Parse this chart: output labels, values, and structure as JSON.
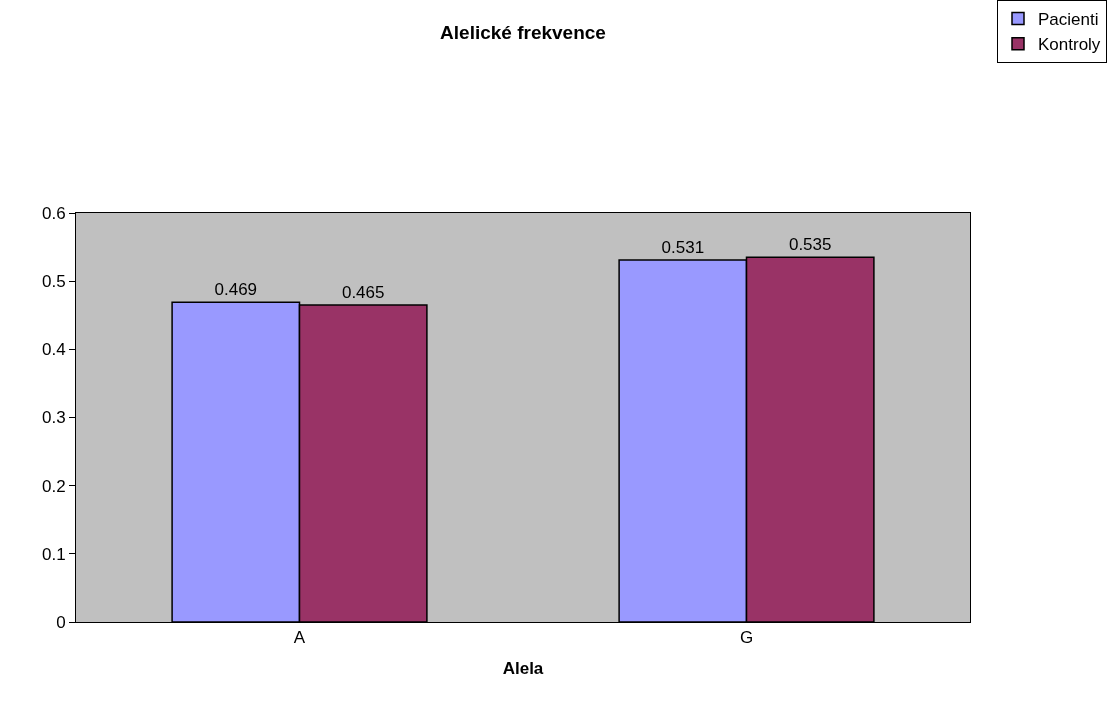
{
  "chart_data": {
    "type": "bar",
    "title": "Alelické frekvence",
    "xlabel": "Alela",
    "categories": [
      "A",
      "G"
    ],
    "series": [
      {
        "name": "Pacienti",
        "color": "#9999ff",
        "values": [
          0.469,
          0.531
        ]
      },
      {
        "name": "Kontroly",
        "color": "#993366",
        "values": [
          0.465,
          0.535
        ]
      }
    ],
    "ylim": [
      0,
      0.6
    ],
    "yticks": [
      0,
      0.1,
      0.2,
      0.3,
      0.4,
      0.5,
      0.6
    ],
    "data_labels": true,
    "grid": false,
    "legend": "top right"
  }
}
